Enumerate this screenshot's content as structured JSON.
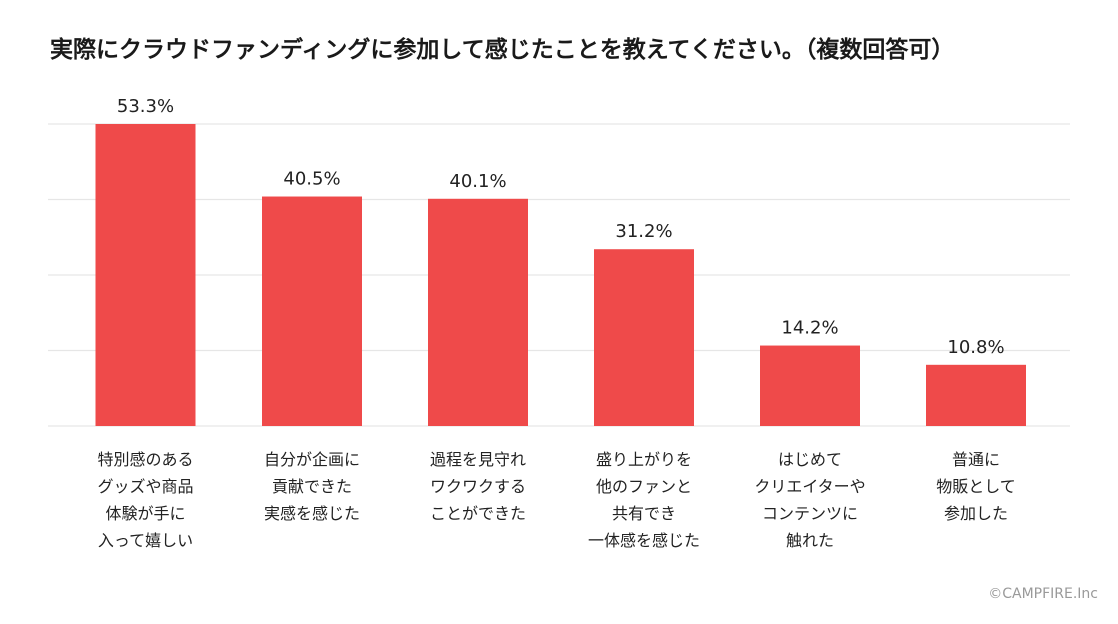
{
  "chart_data": {
    "type": "bar",
    "title": "実際にクラウドファンディングに参加して感じたことを教えてください。（複数回答可）",
    "categories": [
      [
        "特別感のある",
        "グッズや商品",
        "体験が手に",
        "入って嬉しい"
      ],
      [
        "自分が企画に",
        "貢献できた",
        "実感を感じた"
      ],
      [
        "過程を見守れ",
        "ワクワクする",
        "ことができた"
      ],
      [
        "盛り上がりを",
        "他のファンと",
        "共有でき",
        "一体感を感じた"
      ],
      [
        "はじめて",
        "クリエイターや",
        "コンテンツに",
        "触れた"
      ],
      [
        "普通に",
        "物販として",
        "参加した"
      ]
    ],
    "values": [
      53.3,
      40.5,
      40.1,
      31.2,
      14.2,
      10.8
    ],
    "value_labels": [
      "53.3%",
      "40.5%",
      "40.1%",
      "31.2%",
      "14.2%",
      "10.8%"
    ],
    "unit": "%",
    "ylim": [
      0,
      53.3
    ],
    "grid": true,
    "xlabel": "",
    "ylabel": ""
  },
  "colors": {
    "bar": "#ef4a4a",
    "grid": "#e6e6e6",
    "text": "#222222"
  },
  "footer": {
    "copyright": "©CAMPFIRE.Inc"
  }
}
